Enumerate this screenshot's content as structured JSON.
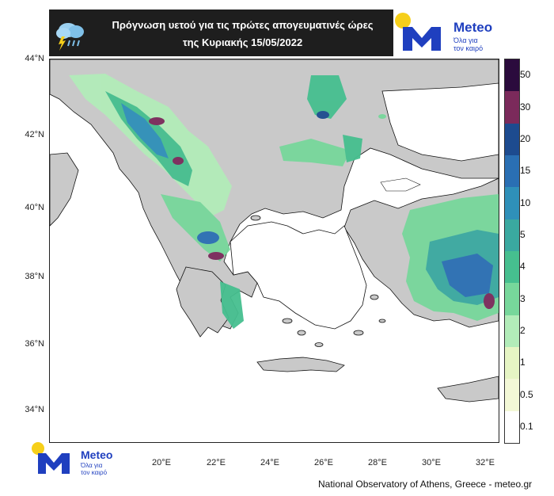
{
  "header": {
    "title_line1": "Πρόγνωση υετού για τις πρώτες απογευματινές ώρες",
    "title_line2": "της Κυριακής 15/05/2022",
    "icon": "rain-cloud-lightning-icon"
  },
  "brand": {
    "name": "Meteo",
    "tagline_line1": "Όλα για",
    "tagline_line2": "τον καιρό",
    "colors": {
      "blue": "#1f3fbf",
      "yellow": "#f6cf1a"
    }
  },
  "map": {
    "lat_labels": [
      "44°N",
      "42°N",
      "40°N",
      "38°N",
      "36°N",
      "34°N"
    ],
    "lon_labels": [
      "20°E",
      "22°E",
      "24°E",
      "26°E",
      "28°E",
      "30°E",
      "32°E"
    ],
    "land_color": "#c9c9c9",
    "sea_color": "#ffffff"
  },
  "legend": {
    "labels": [
      "50",
      "30",
      "20",
      "15",
      "10",
      "5",
      "4",
      "3",
      "2",
      "1",
      "0.5",
      "0.1"
    ],
    "colors": [
      "#2b0b3d",
      "#7b2a5b",
      "#1d4b8f",
      "#2a6fb3",
      "#2f90b9",
      "#3aa9a0",
      "#46bf8f",
      "#77d79b",
      "#b2ecb9",
      "#e6f5c4",
      "#f3f8d6",
      "#ffffff"
    ]
  },
  "footer": {
    "credit": "National Observatory of Athens, Greece - meteo.gr"
  }
}
